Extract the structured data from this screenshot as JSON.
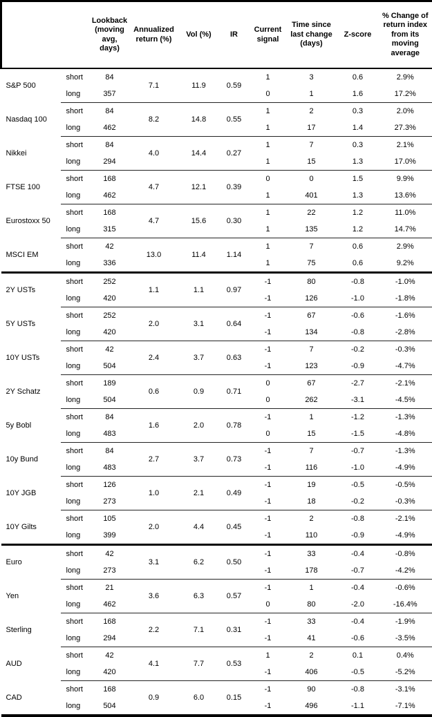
{
  "header": {
    "asset": "",
    "leg": "",
    "lookback": "Lookback\n(moving\navg, days)",
    "annualized": "Annualized\nreturn (%)",
    "vol": "Vol (%)",
    "ir": "IR",
    "signal": "Current\nsignal",
    "time": "Time since\nlast change\n(days)",
    "zscore": "Z-score",
    "pct_change": "% Change of\nreturn index\nfrom its\nmoving\naverage"
  },
  "groups": [
    {
      "name": "S&P 500",
      "new_section": false,
      "annualized": "7.1",
      "vol": "11.9",
      "ir": "0.59",
      "rows": [
        {
          "leg": "short",
          "lookback": "84",
          "signal": "1",
          "time": "3",
          "zscore": "0.6",
          "pct": "2.9%"
        },
        {
          "leg": "long",
          "lookback": "357",
          "signal": "0",
          "time": "1",
          "zscore": "1.6",
          "pct": "17.2%"
        }
      ]
    },
    {
      "name": "Nasdaq 100",
      "new_section": false,
      "annualized": "8.2",
      "vol": "14.8",
      "ir": "0.55",
      "rows": [
        {
          "leg": "short",
          "lookback": "84",
          "signal": "1",
          "time": "2",
          "zscore": "0.3",
          "pct": "2.0%"
        },
        {
          "leg": "long",
          "lookback": "462",
          "signal": "1",
          "time": "17",
          "zscore": "1.4",
          "pct": "27.3%"
        }
      ]
    },
    {
      "name": "Nikkei",
      "new_section": false,
      "annualized": "4.0",
      "vol": "14.4",
      "ir": "0.27",
      "rows": [
        {
          "leg": "short",
          "lookback": "84",
          "signal": "1",
          "time": "7",
          "zscore": "0.3",
          "pct": "2.1%"
        },
        {
          "leg": "long",
          "lookback": "294",
          "signal": "1",
          "time": "15",
          "zscore": "1.3",
          "pct": "17.0%"
        }
      ]
    },
    {
      "name": "FTSE 100",
      "new_section": false,
      "annualized": "4.7",
      "vol": "12.1",
      "ir": "0.39",
      "rows": [
        {
          "leg": "short",
          "lookback": "168",
          "signal": "0",
          "time": "0",
          "zscore": "1.5",
          "pct": "9.9%"
        },
        {
          "leg": "long",
          "lookback": "462",
          "signal": "1",
          "time": "401",
          "zscore": "1.3",
          "pct": "13.6%"
        }
      ]
    },
    {
      "name": "Eurostoxx 50",
      "new_section": false,
      "annualized": "4.7",
      "vol": "15.6",
      "ir": "0.30",
      "rows": [
        {
          "leg": "short",
          "lookback": "168",
          "signal": "1",
          "time": "22",
          "zscore": "1.2",
          "pct": "11.0%"
        },
        {
          "leg": "long",
          "lookback": "315",
          "signal": "1",
          "time": "135",
          "zscore": "1.2",
          "pct": "14.7%"
        }
      ]
    },
    {
      "name": "MSCI EM",
      "new_section": false,
      "annualized": "13.0",
      "vol": "11.4",
      "ir": "1.14",
      "rows": [
        {
          "leg": "short",
          "lookback": "42",
          "signal": "1",
          "time": "7",
          "zscore": "0.6",
          "pct": "2.9%"
        },
        {
          "leg": "long",
          "lookback": "336",
          "signal": "1",
          "time": "75",
          "zscore": "0.6",
          "pct": "9.2%"
        }
      ]
    },
    {
      "name": "2Y USTs",
      "new_section": true,
      "annualized": "1.1",
      "vol": "1.1",
      "ir": "0.97",
      "rows": [
        {
          "leg": "short",
          "lookback": "252",
          "signal": "-1",
          "time": "80",
          "zscore": "-0.8",
          "pct": "-1.0%"
        },
        {
          "leg": "long",
          "lookback": "420",
          "signal": "-1",
          "time": "126",
          "zscore": "-1.0",
          "pct": "-1.8%"
        }
      ]
    },
    {
      "name": "5Y USTs",
      "new_section": false,
      "annualized": "2.0",
      "vol": "3.1",
      "ir": "0.64",
      "rows": [
        {
          "leg": "short",
          "lookback": "252",
          "signal": "-1",
          "time": "67",
          "zscore": "-0.6",
          "pct": "-1.6%"
        },
        {
          "leg": "long",
          "lookback": "420",
          "signal": "-1",
          "time": "134",
          "zscore": "-0.8",
          "pct": "-2.8%"
        }
      ]
    },
    {
      "name": "10Y USTs",
      "new_section": false,
      "annualized": "2.4",
      "vol": "3.7",
      "ir": "0.63",
      "rows": [
        {
          "leg": "short",
          "lookback": "42",
          "signal": "-1",
          "time": "7",
          "zscore": "-0.2",
          "pct": "-0.3%"
        },
        {
          "leg": "long",
          "lookback": "504",
          "signal": "-1",
          "time": "123",
          "zscore": "-0.9",
          "pct": "-4.7%"
        }
      ]
    },
    {
      "name": "2Y Schatz",
      "new_section": false,
      "annualized": "0.6",
      "vol": "0.9",
      "ir": "0.71",
      "rows": [
        {
          "leg": "short",
          "lookback": "189",
          "signal": "0",
          "time": "67",
          "zscore": "-2.7",
          "pct": "-2.1%"
        },
        {
          "leg": "long",
          "lookback": "504",
          "signal": "0",
          "time": "262",
          "zscore": "-3.1",
          "pct": "-4.5%"
        }
      ]
    },
    {
      "name": "5y Bobl",
      "new_section": false,
      "annualized": "1.6",
      "vol": "2.0",
      "ir": "0.78",
      "rows": [
        {
          "leg": "short",
          "lookback": "84",
          "signal": "-1",
          "time": "1",
          "zscore": "-1.2",
          "pct": "-1.3%"
        },
        {
          "leg": "long",
          "lookback": "483",
          "signal": "0",
          "time": "15",
          "zscore": "-1.5",
          "pct": "-4.8%"
        }
      ]
    },
    {
      "name": "10y Bund",
      "new_section": false,
      "annualized": "2.7",
      "vol": "3.7",
      "ir": "0.73",
      "rows": [
        {
          "leg": "short",
          "lookback": "84",
          "signal": "-1",
          "time": "7",
          "zscore": "-0.7",
          "pct": "-1.3%"
        },
        {
          "leg": "long",
          "lookback": "483",
          "signal": "-1",
          "time": "116",
          "zscore": "-1.0",
          "pct": "-4.9%"
        }
      ]
    },
    {
      "name": "10Y JGB",
      "new_section": false,
      "annualized": "1.0",
      "vol": "2.1",
      "ir": "0.49",
      "rows": [
        {
          "leg": "short",
          "lookback": "126",
          "signal": "-1",
          "time": "19",
          "zscore": "-0.5",
          "pct": "-0.5%"
        },
        {
          "leg": "long",
          "lookback": "273",
          "signal": "-1",
          "time": "18",
          "zscore": "-0.2",
          "pct": "-0.3%"
        }
      ]
    },
    {
      "name": "10Y Gilts",
      "new_section": false,
      "annualized": "2.0",
      "vol": "4.4",
      "ir": "0.45",
      "rows": [
        {
          "leg": "short",
          "lookback": "105",
          "signal": "-1",
          "time": "2",
          "zscore": "-0.8",
          "pct": "-2.1%"
        },
        {
          "leg": "long",
          "lookback": "399",
          "signal": "-1",
          "time": "110",
          "zscore": "-0.9",
          "pct": "-4.9%"
        }
      ]
    },
    {
      "name": "Euro",
      "new_section": true,
      "annualized": "3.1",
      "vol": "6.2",
      "ir": "0.50",
      "rows": [
        {
          "leg": "short",
          "lookback": "42",
          "signal": "-1",
          "time": "33",
          "zscore": "-0.4",
          "pct": "-0.8%"
        },
        {
          "leg": "long",
          "lookback": "273",
          "signal": "-1",
          "time": "178",
          "zscore": "-0.7",
          "pct": "-4.2%"
        }
      ]
    },
    {
      "name": "Yen",
      "new_section": false,
      "annualized": "3.6",
      "vol": "6.3",
      "ir": "0.57",
      "rows": [
        {
          "leg": "short",
          "lookback": "21",
          "signal": "-1",
          "time": "1",
          "zscore": "-0.4",
          "pct": "-0.6%"
        },
        {
          "leg": "long",
          "lookback": "462",
          "signal": "0",
          "time": "80",
          "zscore": "-2.0",
          "pct": "-16.4%"
        }
      ]
    },
    {
      "name": "Sterling",
      "new_section": false,
      "annualized": "2.2",
      "vol": "7.1",
      "ir": "0.31",
      "rows": [
        {
          "leg": "short",
          "lookback": "168",
          "signal": "-1",
          "time": "33",
          "zscore": "-0.4",
          "pct": "-1.9%"
        },
        {
          "leg": "long",
          "lookback": "294",
          "signal": "-1",
          "time": "41",
          "zscore": "-0.6",
          "pct": "-3.5%"
        }
      ]
    },
    {
      "name": "AUD",
      "new_section": false,
      "annualized": "4.1",
      "vol": "7.7",
      "ir": "0.53",
      "rows": [
        {
          "leg": "short",
          "lookback": "42",
          "signal": "1",
          "time": "2",
          "zscore": "0.1",
          "pct": "0.4%"
        },
        {
          "leg": "long",
          "lookback": "420",
          "signal": "-1",
          "time": "406",
          "zscore": "-0.5",
          "pct": "-5.2%"
        }
      ]
    },
    {
      "name": "CAD",
      "new_section": false,
      "annualized": "0.9",
      "vol": "6.0",
      "ir": "0.15",
      "rows": [
        {
          "leg": "short",
          "lookback": "168",
          "signal": "-1",
          "time": "90",
          "zscore": "-0.8",
          "pct": "-3.1%"
        },
        {
          "leg": "long",
          "lookback": "504",
          "signal": "-1",
          "time": "496",
          "zscore": "-1.1",
          "pct": "-7.1%"
        }
      ]
    }
  ]
}
